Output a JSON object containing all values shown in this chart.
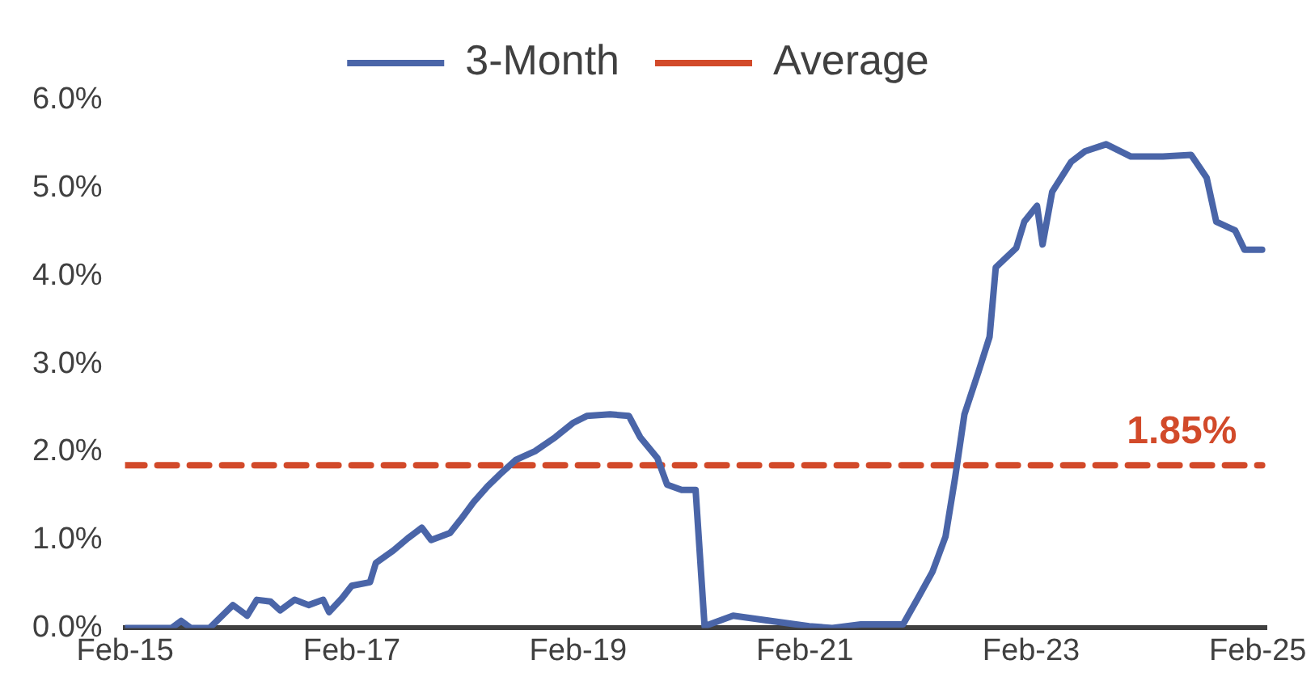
{
  "chart_data": {
    "type": "line",
    "legend": "top",
    "grid": false,
    "line_style": "solid",
    "marker": "none",
    "xlim": [
      "2015-02",
      "2025-03"
    ],
    "xticks": [
      {
        "value": "2015-02",
        "label": "Feb-15"
      },
      {
        "value": "2017-02",
        "label": "Feb-17"
      },
      {
        "value": "2019-02",
        "label": "Feb-19"
      },
      {
        "value": "2021-02",
        "label": "Feb-21"
      },
      {
        "value": "2023-02",
        "label": "Feb-23"
      },
      {
        "value": "2025-02",
        "label": "Feb-25"
      }
    ],
    "ylim": [
      0,
      6
    ],
    "yticks": [
      {
        "value": 0,
        "label": "0.0%"
      },
      {
        "value": 1,
        "label": "1.0%"
      },
      {
        "value": 2,
        "label": "2.0%"
      },
      {
        "value": 3,
        "label": "3.0%"
      },
      {
        "value": 4,
        "label": "4.0%"
      },
      {
        "value": 5,
        "label": "5.0%"
      },
      {
        "value": 6,
        "label": "6.0%"
      }
    ],
    "annotations": [
      {
        "text": "1.85%",
        "x": "2024-06",
        "y": 1.85
      }
    ],
    "series": [
      {
        "name": "3-Month",
        "color": "#4a65a8",
        "x": [
          "2015-02-01",
          "2015-07-01",
          "2015-08-01",
          "2015-09-01",
          "2015-11-01",
          "2016-01-15",
          "2016-03-01",
          "2016-04-01",
          "2016-05-15",
          "2016-06-15",
          "2016-08-01",
          "2016-09-15",
          "2016-11-01",
          "2016-11-20",
          "2017-01-01",
          "2017-02-01",
          "2017-04-01",
          "2017-04-20",
          "2017-06-15",
          "2017-08-01",
          "2017-09-15",
          "2017-10-15",
          "2017-12-15",
          "2018-01-20",
          "2018-03-01",
          "2018-04-15",
          "2018-06-01",
          "2018-07-15",
          "2018-09-15",
          "2018-11-20",
          "2019-01-15",
          "2019-03-01",
          "2019-05-15",
          "2019-07-15",
          "2019-08-20",
          "2019-10-15",
          "2019-11-15",
          "2020-01-01",
          "2020-02-15",
          "2020-03-15",
          "2020-06-15",
          "2020-10-15",
          "2021-02-15",
          "2021-05-01",
          "2021-08-01",
          "2021-12-15",
          "2022-02-01",
          "2022-03-20",
          "2022-05-01",
          "2022-06-01",
          "2022-07-01",
          "2022-08-15",
          "2022-09-20",
          "2022-10-10",
          "2022-12-15",
          "2023-01-10",
          "2023-02-20",
          "2023-03-10",
          "2023-04-10",
          "2023-06-10",
          "2023-07-25",
          "2023-10-01",
          "2023-12-20",
          "2024-04-01",
          "2024-07-01",
          "2024-08-20",
          "2024-09-20",
          "2024-11-20",
          "2024-12-20",
          "2025-02-15"
        ],
        "values": [
          0,
          0,
          0.08,
          0,
          0,
          0.26,
          0.14,
          0.32,
          0.3,
          0.2,
          0.32,
          0.26,
          0.32,
          0.18,
          0.34,
          0.48,
          0.52,
          0.74,
          0.88,
          1.02,
          1.14,
          1.0,
          1.08,
          1.24,
          1.43,
          1.61,
          1.77,
          1.91,
          2.01,
          2.17,
          2.33,
          2.41,
          2.43,
          2.41,
          2.17,
          1.93,
          1.63,
          1.57,
          1.57,
          0.02,
          0.14,
          0.08,
          0.02,
          0,
          0.04,
          0.04,
          0.34,
          0.64,
          1.04,
          1.71,
          2.43,
          2.91,
          3.31,
          4.1,
          4.32,
          4.62,
          4.8,
          4.36,
          4.96,
          5.3,
          5.42,
          5.5,
          5.36,
          5.36,
          5.38,
          5.12,
          4.62,
          4.52,
          4.3,
          4.3
        ]
      },
      {
        "name": "Average",
        "color": "#d24a2a",
        "line_style": "dashed",
        "x": [
          "2015-02",
          "2025-02-15"
        ],
        "values": [
          1.85,
          1.85
        ]
      }
    ]
  }
}
